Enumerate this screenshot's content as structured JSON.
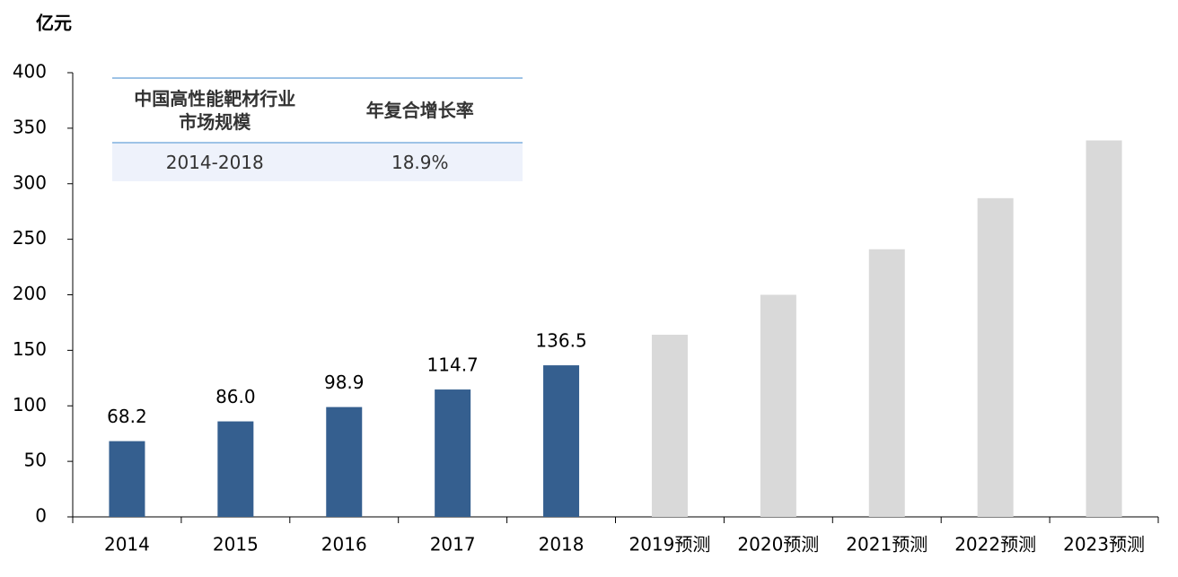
{
  "chart_data": {
    "type": "bar",
    "y_label": "亿元",
    "categories": [
      "2014",
      "2015",
      "2016",
      "2017",
      "2018",
      "2019预测",
      "2020预测",
      "2021预测",
      "2022预测",
      "2023预测"
    ],
    "values": [
      68.2,
      86.0,
      98.9,
      114.7,
      136.5,
      164,
      200,
      241,
      287,
      339
    ],
    "value_labels": [
      "68.2",
      "86.0",
      "98.9",
      "114.7",
      "136.5",
      null,
      null,
      null,
      null,
      null
    ],
    "colors": [
      "#355f8f",
      "#355f8f",
      "#355f8f",
      "#355f8f",
      "#355f8f",
      "#d9d9d9",
      "#d9d9d9",
      "#d9d9d9",
      "#d9d9d9",
      "#d9d9d9"
    ],
    "ylim": [
      0,
      400
    ],
    "yticks": [
      0,
      50,
      100,
      150,
      200,
      250,
      300,
      350,
      400
    ],
    "grid": false
  },
  "table": {
    "header": [
      "中国高性能靶材行业\n市场规模",
      "年复合增长率"
    ],
    "rows": [
      [
        "2014-2018",
        "18.9%"
      ]
    ]
  }
}
